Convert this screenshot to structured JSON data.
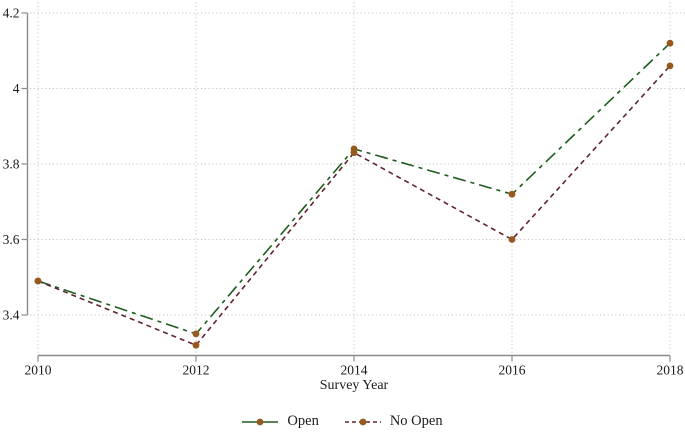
{
  "chart_data": {
    "type": "line",
    "title": "",
    "xlabel": "Survey Year",
    "ylabel": "",
    "x": [
      2010,
      2012,
      2014,
      2016,
      2018
    ],
    "xtick_labels": [
      "2010",
      "2012",
      "2014",
      "2016",
      "2018"
    ],
    "yticks": [
      3.4,
      3.6,
      3.8,
      4.0,
      4.2
    ],
    "ytick_labels": [
      "3.4",
      "3.6",
      "3.8",
      "4",
      "4.2"
    ],
    "ylim": [
      3.4,
      4.2
    ],
    "xlim": [
      2010,
      2018
    ],
    "grid": "dotted",
    "legend_position": "bottom-center",
    "series": [
      {
        "name": "Open",
        "values": [
          3.49,
          3.35,
          3.84,
          3.72,
          4.12
        ],
        "line_color": "#1e5c1e",
        "dash": "13 5 4 5",
        "marker": "circle",
        "marker_color": "#965a1e"
      },
      {
        "name": "No Open",
        "values": [
          3.49,
          3.32,
          3.83,
          3.6,
          4.06
        ],
        "line_color": "#5f2430",
        "dash": "5 4",
        "marker": "circle",
        "marker_color": "#965a1e"
      }
    ],
    "colors": {
      "grid": "#c6c6c6",
      "axis": "#8a8a8a",
      "text": "#1c1c1c",
      "background": "#ffffff"
    }
  }
}
